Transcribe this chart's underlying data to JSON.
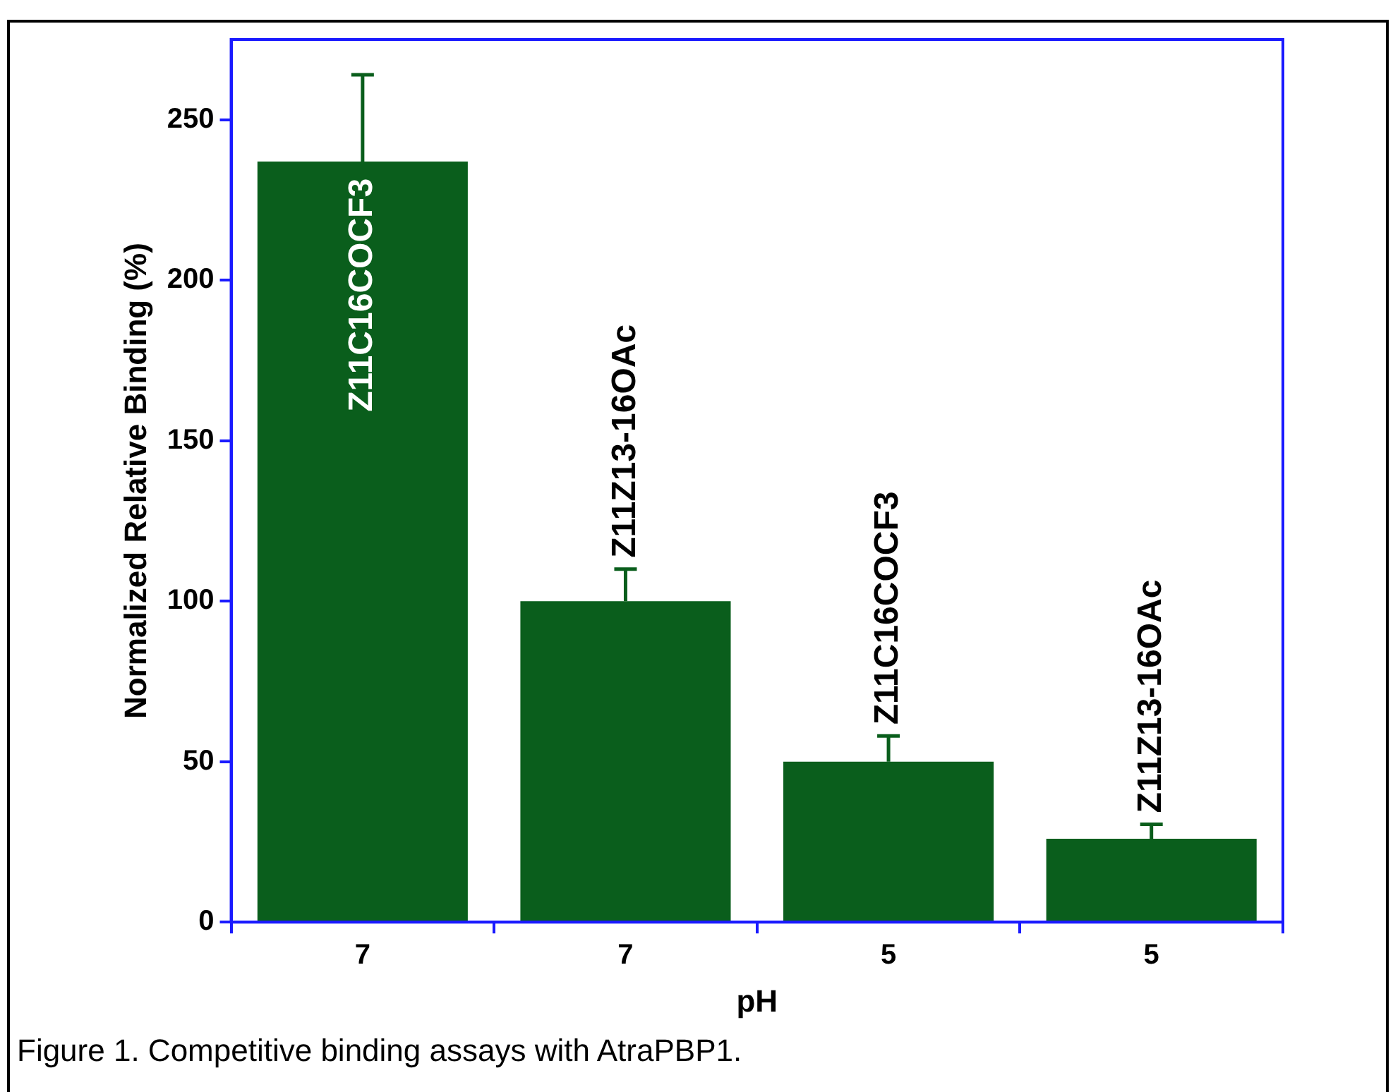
{
  "chart_data": {
    "type": "bar",
    "xlabel": "pH",
    "ylabel": "Normalized Relative Binding (%)",
    "categories": [
      "7",
      "7",
      "5",
      "5"
    ],
    "values": [
      237,
      100,
      50,
      26
    ],
    "errors": [
      [
        237,
        264
      ],
      [
        100,
        110
      ],
      [
        50,
        58
      ],
      [
        26,
        30.5
      ]
    ],
    "color": "#0a5e1c",
    "ylim": [
      0,
      275
    ],
    "yticks": [
      0,
      50,
      100,
      150,
      200,
      250
    ],
    "grid": false,
    "legend": false,
    "annotations": [
      "Z11C16COCF3",
      "Z11Z13-16OAc",
      "Z11C16COCF3",
      "Z11Z13-16OAc",
      "Figure 1.  Competitive binding assays with AtraPBP1."
    ]
  }
}
